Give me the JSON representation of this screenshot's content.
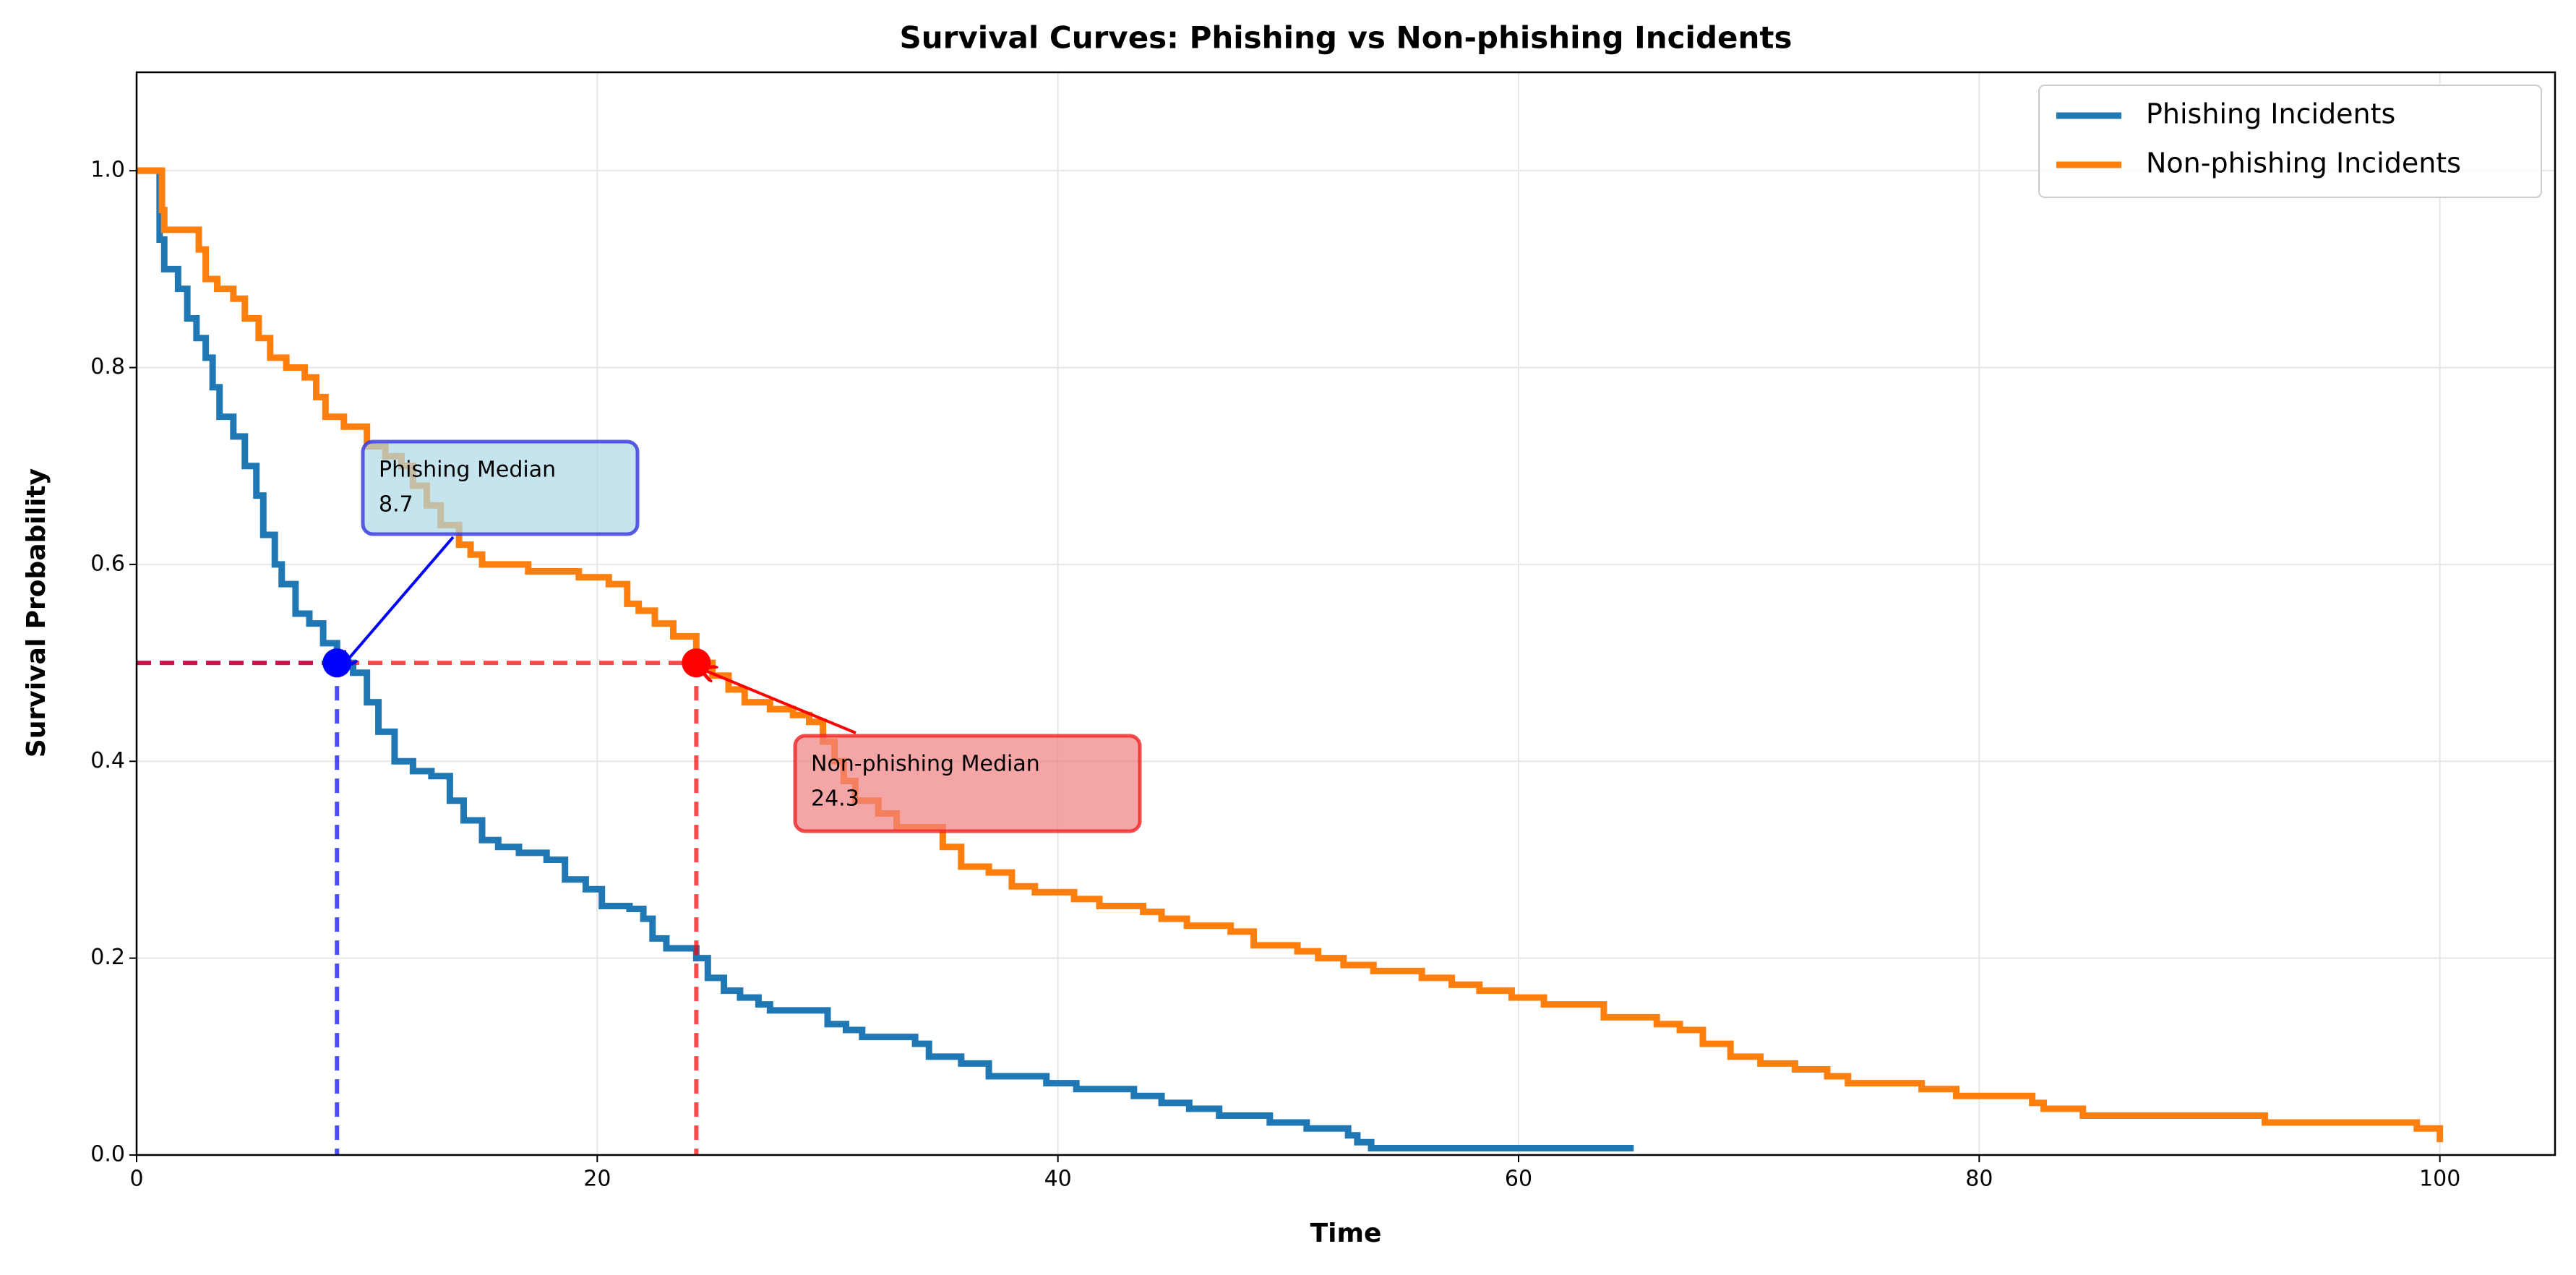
{
  "chart_data": {
    "type": "step",
    "title": "Survival Curves: Phishing vs Non-phishing Incidents",
    "xlabel": "Time",
    "ylabel": "Survival Probability",
    "xlim": [
      0,
      105
    ],
    "ylim": [
      0,
      1.1
    ],
    "xticks": [
      0,
      20,
      40,
      60,
      80,
      100
    ],
    "yticks": [
      {
        "value": 0,
        "label": "0.0"
      },
      0.2,
      0.4,
      0.6,
      0.8,
      {
        "value": 1,
        "label": "1.0"
      }
    ],
    "grid": true,
    "legend": "upper right",
    "series": [
      {
        "name": "Phishing Incidents",
        "color": "#1f77b4",
        "x": [
          0,
          1,
          1.2,
          1.8,
          2.2,
          2.6,
          3,
          3.3,
          3.6,
          4.2,
          4.7,
          5.2,
          5.5,
          6,
          6.3,
          6.9,
          7.5,
          8.1,
          8.7,
          9.4,
          10,
          10.5,
          11.2,
          12,
          12.8,
          13.6,
          14.2,
          15,
          15.7,
          16.6,
          17.8,
          18.6,
          19.5,
          20.2,
          21.4,
          22,
          22.4,
          23,
          24.3,
          24.8,
          25.5,
          26.2,
          27,
          27.5,
          30,
          30.8,
          31.5,
          33.8,
          34.4,
          35.8,
          37,
          39.5,
          40.8,
          43.3,
          44.5,
          45.7,
          47,
          49.2,
          50.8,
          52.6,
          53,
          53.6,
          65
        ],
        "values": [
          1.0,
          0.93,
          0.9,
          0.88,
          0.85,
          0.83,
          0.81,
          0.78,
          0.75,
          0.73,
          0.7,
          0.67,
          0.63,
          0.6,
          0.58,
          0.55,
          0.54,
          0.52,
          0.5,
          0.49,
          0.46,
          0.43,
          0.4,
          0.39,
          0.385,
          0.36,
          0.34,
          0.32,
          0.313,
          0.307,
          0.3,
          0.28,
          0.27,
          0.253,
          0.25,
          0.24,
          0.22,
          0.21,
          0.2,
          0.18,
          0.167,
          0.16,
          0.153,
          0.147,
          0.133,
          0.127,
          0.12,
          0.113,
          0.1,
          0.093,
          0.08,
          0.073,
          0.067,
          0.06,
          0.053,
          0.047,
          0.04,
          0.033,
          0.027,
          0.02,
          0.013,
          0.007,
          0.007
        ]
      },
      {
        "name": "Non-phishing Incidents",
        "color": "#ff7f0e",
        "x": [
          0,
          1.1,
          1.2,
          2.7,
          3,
          3.5,
          4.2,
          4.7,
          5.3,
          5.8,
          6.5,
          7.3,
          7.8,
          8.2,
          9,
          10,
          10.8,
          11.5,
          12,
          12.6,
          13.2,
          14,
          14.5,
          15,
          17,
          19.2,
          20.5,
          21.3,
          21.8,
          22.5,
          23.3,
          24.3,
          25,
          25.7,
          26.4,
          27.5,
          28.5,
          29.2,
          29.8,
          30.3,
          30.7,
          31.2,
          32.2,
          33,
          35,
          35.8,
          37,
          38,
          39,
          40.7,
          41.8,
          43.7,
          44.5,
          45.6,
          47.5,
          48.5,
          50.4,
          51.3,
          52.4,
          53.7,
          55.8,
          57.1,
          58.3,
          59.7,
          61.1,
          63.7,
          66,
          67,
          68,
          69.2,
          70.5,
          72,
          73.4,
          74.3,
          77.5,
          79,
          82.3,
          82.8,
          84.5,
          92.4,
          99,
          100
        ],
        "values": [
          1.0,
          0.96,
          0.94,
          0.92,
          0.89,
          0.88,
          0.87,
          0.85,
          0.83,
          0.81,
          0.8,
          0.79,
          0.77,
          0.75,
          0.74,
          0.72,
          0.71,
          0.7,
          0.68,
          0.66,
          0.64,
          0.62,
          0.61,
          0.6,
          0.593,
          0.587,
          0.58,
          0.56,
          0.553,
          0.54,
          0.527,
          0.5,
          0.487,
          0.473,
          0.46,
          0.453,
          0.447,
          0.44,
          0.42,
          0.4,
          0.38,
          0.36,
          0.347,
          0.333,
          0.313,
          0.293,
          0.287,
          0.273,
          0.267,
          0.26,
          0.253,
          0.247,
          0.24,
          0.233,
          0.227,
          0.213,
          0.207,
          0.2,
          0.193,
          0.187,
          0.18,
          0.173,
          0.167,
          0.16,
          0.153,
          0.14,
          0.133,
          0.127,
          0.113,
          0.1,
          0.093,
          0.087,
          0.08,
          0.073,
          0.067,
          0.06,
          0.053,
          0.047,
          0.04,
          0.033,
          0.027,
          0.013
        ]
      }
    ],
    "annotations": [
      {
        "label": "Phishing Median",
        "value": 8.7,
        "y": 0.5,
        "color": "blue"
      },
      {
        "label": "Non-phishing Median",
        "value": 24.3,
        "y": 0.5,
        "color": "red"
      }
    ]
  }
}
